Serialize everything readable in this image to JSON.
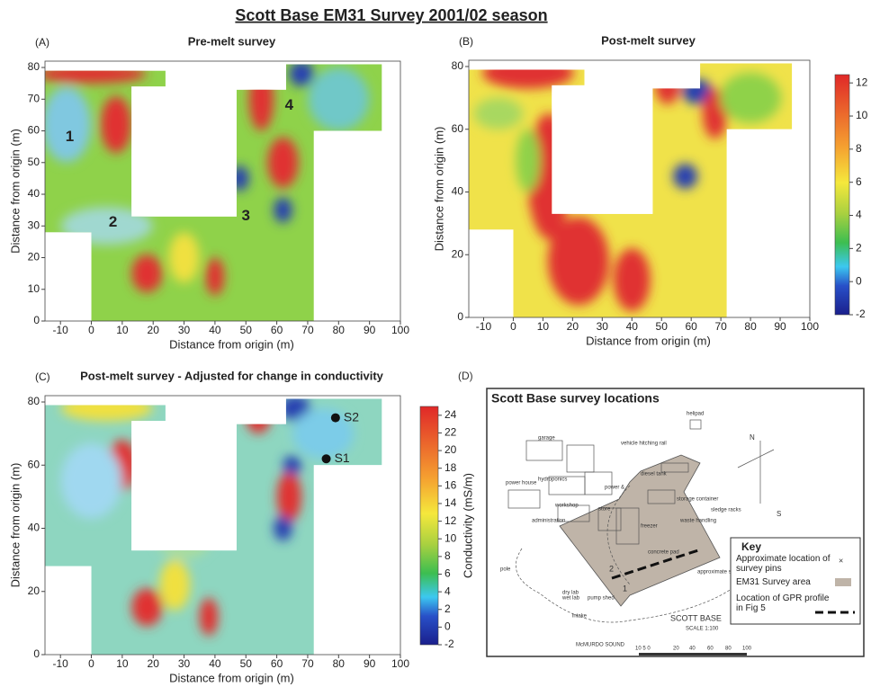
{
  "title": "Scott Base EM31 Survey 2001/02 season",
  "chart_data": [
    {
      "type": "heatmap",
      "panel": "(A)",
      "title": "Pre-melt survey",
      "xlabel": "Distance from origin (m)",
      "ylabel": "Distance from origin (m)",
      "xlim": [
        -15,
        100
      ],
      "ylim": [
        0,
        82
      ],
      "xticks": [
        -10,
        0,
        10,
        20,
        30,
        40,
        50,
        60,
        70,
        80,
        90,
        100
      ],
      "yticks": [
        0,
        10,
        20,
        30,
        40,
        50,
        60,
        70,
        80
      ],
      "annotations": [
        {
          "label": "1",
          "x": -7,
          "y": 58
        },
        {
          "label": "2",
          "x": 7,
          "y": 31
        },
        {
          "label": "3",
          "x": 50,
          "y": 33
        },
        {
          "label": "4",
          "x": 64,
          "y": 68
        }
      ]
    },
    {
      "type": "heatmap",
      "panel": "(B)",
      "title": "Post-melt survey",
      "xlabel": "Distance from origin (m)",
      "ylabel": "Distance from origin (m)",
      "xlim": [
        -15,
        100
      ],
      "ylim": [
        0,
        82
      ],
      "xticks": [
        -10,
        0,
        10,
        20,
        30,
        40,
        50,
        60,
        70,
        80,
        90,
        100
      ],
      "yticks": [
        0,
        20,
        40,
        60,
        80
      ],
      "colorbar": {
        "lim": [
          -2,
          12.5
        ],
        "ticks": [
          -2,
          0,
          2,
          4,
          6,
          8,
          10,
          12
        ]
      }
    },
    {
      "type": "heatmap",
      "panel": "(C)",
      "title": "Post-melt survey - Adjusted for change in conductivity",
      "xlabel": "Distance from origin (m)",
      "ylabel": "Distance from origin (m)",
      "xlim": [
        -15,
        100
      ],
      "ylim": [
        0,
        82
      ],
      "xticks": [
        -10,
        0,
        10,
        20,
        30,
        40,
        50,
        60,
        70,
        80,
        90,
        100
      ],
      "yticks": [
        0,
        20,
        40,
        60,
        80
      ],
      "points": [
        {
          "label": "S1",
          "x": 76,
          "y": 62
        },
        {
          "label": "S2",
          "x": 79,
          "y": 75
        }
      ],
      "colorbar": {
        "lim": [
          -2,
          25
        ],
        "ticks": [
          -2,
          0,
          2,
          4,
          6,
          8,
          10,
          12,
          14,
          16,
          18,
          20,
          22,
          24
        ],
        "label": "Conductivity (mS/m)"
      }
    }
  ],
  "diagram": {
    "panel": "(D)",
    "title": "Scott Base survey locations",
    "labels": [
      "garage",
      "vehicle hitching rail",
      "helipad",
      "power house",
      "hydroponics",
      "power &",
      "diesel tank",
      "workshop",
      "store",
      "storage container",
      "sledge racks",
      "administration",
      "freezer",
      "waste handling",
      "concrete pad",
      "approximate shoreline",
      "pole",
      "dry lab",
      "wet lab",
      "pump shed",
      "intake",
      "N",
      "S",
      "1",
      "2"
    ],
    "place": "SCOTT BASE",
    "scale": "SCALE 1:100",
    "sea": "McMURDO SOUND",
    "scale_labels": [
      "10 5 0",
      "20",
      "40",
      "60",
      "80",
      "100"
    ],
    "key": {
      "title": "Key",
      "items": [
        "Approximate location of survey pins",
        "EM31 Survey area",
        "Location of GPR profile in Fig 5"
      ]
    }
  }
}
